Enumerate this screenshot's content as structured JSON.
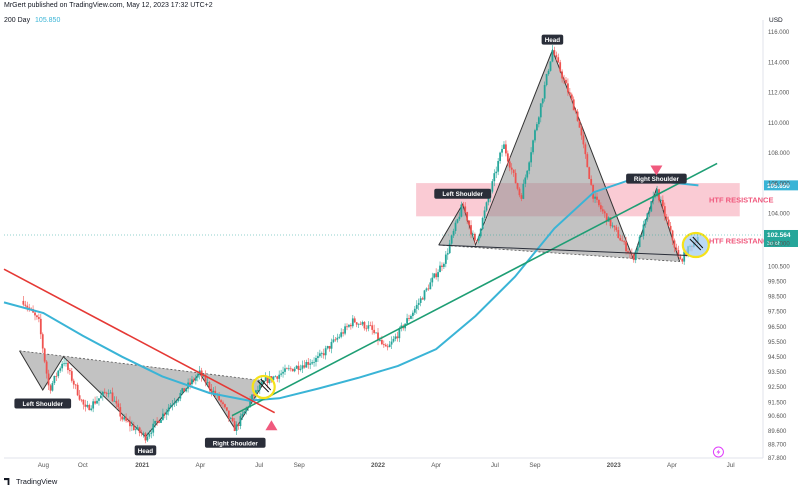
{
  "header": {
    "attribution": "MrGert published on TradingView.com, May 12, 2023 17:32 UTC+2",
    "indicator_name": "200 Day",
    "indicator_value": "105.850"
  },
  "footer": {
    "brand": "TradingView"
  },
  "colors": {
    "up": "#26a69a",
    "down": "#ef5350",
    "ma": "#3ab4d6",
    "trendline_green": "#1e9e74",
    "trendline_red": "#e53935",
    "resistance_zone": "#f7a8b8",
    "resistance_text": "#f05a7e",
    "pattern_fill": "#8f8f8f",
    "price_tag": "#26a69a",
    "highlight_circle": "#f5e21b"
  },
  "annotations": {
    "htf_resistance_1": "HTF RESISTANCE",
    "htf_resistance_2": "HTF RESISTANCE",
    "price_tag_value": "102.564",
    "price_tag_sub": "3d 8h"
  },
  "chart_data": {
    "type": "candlestick",
    "currency_label": "USD",
    "x_tick_labels": [
      "Aug",
      "Oct",
      "2021",
      "Apr",
      "Jul",
      "Sep",
      "2022",
      "Apr",
      "Jul",
      "Sep",
      "2023",
      "Apr",
      "Jul"
    ],
    "y_tick_labels": [
      "116.000",
      "114.000",
      "112.000",
      "110.000",
      "108.000",
      "106.000",
      "104.000",
      "102.000",
      "100.500",
      "99.500",
      "98.500",
      "97.500",
      "96.500",
      "95.500",
      "94.500",
      "93.500",
      "92.500",
      "91.500",
      "90.600",
      "89.600",
      "88.700",
      "87.800"
    ],
    "ylim": [
      87.8,
      116.5
    ],
    "price_path": [
      [
        "2020-07-01",
        98.2
      ],
      [
        "2020-07-25",
        96.8
      ],
      [
        "2020-08-10",
        92.3
      ],
      [
        "2020-09-01",
        94.3
      ],
      [
        "2020-10-05",
        91.0
      ],
      [
        "2020-11-10",
        92.3
      ],
      [
        "2020-12-01",
        90.4
      ],
      [
        "2021-01-06",
        89.2
      ],
      [
        "2021-02-15",
        91.4
      ],
      [
        "2021-03-31",
        93.4
      ],
      [
        "2021-05-01",
        91.6
      ],
      [
        "2021-05-25",
        89.7
      ],
      [
        "2021-06-20",
        91.8
      ],
      [
        "2021-07-10",
        92.9
      ],
      [
        "2021-08-20",
        93.7
      ],
      [
        "2021-10-01",
        94.4
      ],
      [
        "2021-11-24",
        96.9
      ],
      [
        "2021-12-20",
        96.4
      ],
      [
        "2022-01-14",
        94.9
      ],
      [
        "2022-03-01",
        97.8
      ],
      [
        "2022-04-15",
        101.0
      ],
      [
        "2022-05-12",
        104.6
      ],
      [
        "2022-06-01",
        101.9
      ],
      [
        "2022-07-14",
        108.6
      ],
      [
        "2022-08-10",
        105.0
      ],
      [
        "2022-09-28",
        114.8
      ],
      [
        "2022-11-05",
        110.5
      ],
      [
        "2022-12-01",
        105.0
      ],
      [
        "2023-01-31",
        101.0
      ],
      [
        "2023-03-08",
        105.6
      ],
      [
        "2023-04-13",
        100.8
      ],
      [
        "2023-05-12",
        102.56
      ]
    ],
    "moving_average": {
      "name": "200 Day",
      "last_value": 105.85,
      "points": [
        [
          "2020-06-01",
          98.1
        ],
        [
          "2020-08-01",
          97.4
        ],
        [
          "2020-10-01",
          95.9
        ],
        [
          "2020-12-01",
          94.5
        ],
        [
          "2021-02-01",
          93.2
        ],
        [
          "2021-04-15",
          92.1
        ],
        [
          "2021-06-15",
          91.6
        ],
        [
          "2021-08-01",
          91.75
        ],
        [
          "2021-10-01",
          92.4
        ],
        [
          "2021-12-01",
          93.1
        ],
        [
          "2022-02-01",
          93.9
        ],
        [
          "2022-04-01",
          95.0
        ],
        [
          "2022-06-01",
          97.2
        ],
        [
          "2022-08-01",
          99.8
        ],
        [
          "2022-10-01",
          103.0
        ],
        [
          "2022-12-01",
          105.4
        ],
        [
          "2023-02-01",
          106.3
        ],
        [
          "2023-05-12",
          105.85
        ]
      ]
    },
    "resistance_zone": {
      "start": "2022-03-01",
      "end": "2023-07-15",
      "low": 103.8,
      "high": 106.0
    },
    "trendlines": [
      {
        "color": "green",
        "from": [
          "2021-05-20",
          90.6
        ],
        "to": [
          "2023-06-10",
          107.3
        ]
      },
      {
        "color": "red",
        "from": [
          "2020-06-01",
          100.3
        ],
        "to": [
          "2021-07-25",
          90.8
        ]
      },
      {
        "color": "dark",
        "from": [
          "2022-04-05",
          101.9
        ],
        "to": [
          "2023-05-01",
          101.2
        ]
      }
    ],
    "patterns": [
      {
        "kind": "inverse head and shoulders",
        "labels": [
          "Left Shoulder",
          "Head",
          "Right Shoulder"
        ],
        "vertices": [
          [
            "2020-06-25",
            94.9
          ],
          [
            "2020-07-31",
            92.3
          ],
          [
            "2020-09-01",
            94.5
          ],
          [
            "2021-01-06",
            89.2
          ],
          [
            "2021-03-31",
            93.4
          ],
          [
            "2021-05-25",
            89.7
          ],
          [
            "2021-07-10",
            92.9
          ]
        ]
      },
      {
        "kind": "head and shoulders",
        "labels": [
          "Left Shoulder",
          "Head",
          "Right Shoulder"
        ],
        "vertices": [
          [
            "2022-04-05",
            101.9
          ],
          [
            "2022-05-12",
            104.6
          ],
          [
            "2022-06-01",
            101.9
          ],
          [
            "2022-09-28",
            114.8
          ],
          [
            "2023-01-31",
            101.0
          ],
          [
            "2023-03-08",
            105.6
          ],
          [
            "2023-04-13",
            100.8
          ]
        ]
      }
    ],
    "markers": [
      {
        "kind": "up-arrow",
        "at": [
          "2021-07-20",
          89.9
        ]
      },
      {
        "kind": "down-arrow",
        "at": [
          "2023-03-08",
          106.9
        ]
      }
    ],
    "highlight_circles": [
      {
        "at": [
          "2021-07-08",
          92.5
        ]
      },
      {
        "at": [
          "2023-05-08",
          101.9
        ]
      }
    ]
  }
}
